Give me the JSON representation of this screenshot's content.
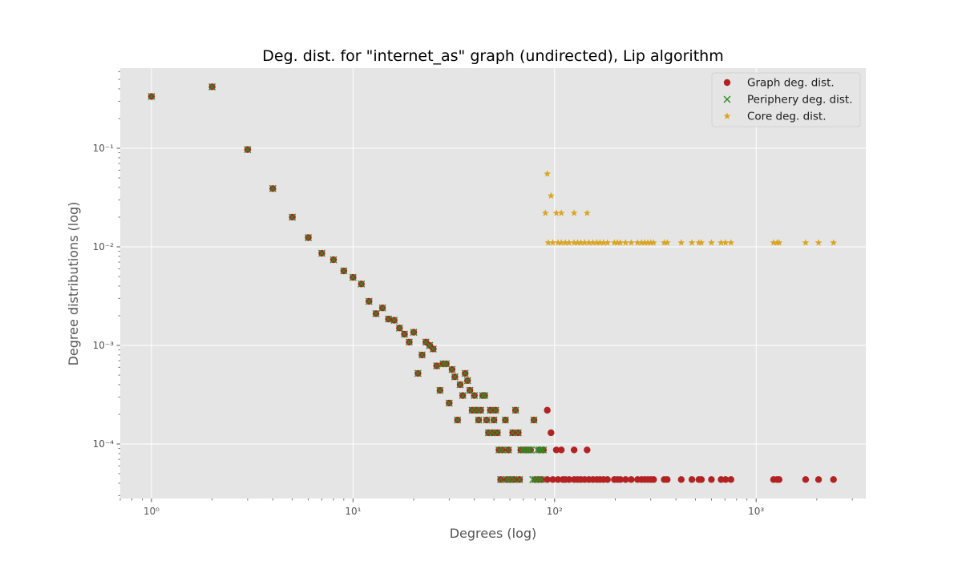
{
  "chart_data": {
    "type": "scatter",
    "title": "Deg. dist. for \"internet_as\" graph (undirected), Lip algorithm",
    "xlabel": "Degrees (log)",
    "ylabel": "Degree distributions (log)",
    "xscale": "log",
    "yscale": "log",
    "xlim": [
      0.7,
      3500
    ],
    "ylim": [
      2.8e-05,
      0.65
    ],
    "grid": true,
    "legend_position": "top-right",
    "x_ticks": [
      {
        "value": 1,
        "label": "10⁰"
      },
      {
        "value": 10,
        "label": "10¹"
      },
      {
        "value": 100,
        "label": "10²"
      },
      {
        "value": 1000,
        "label": "10³"
      }
    ],
    "y_ticks": [
      {
        "value": 0.0001,
        "label": "10⁻⁴"
      },
      {
        "value": 0.001,
        "label": "10⁻³"
      },
      {
        "value": 0.01,
        "label": "10⁻²"
      },
      {
        "value": 0.1,
        "label": "10⁻¹"
      }
    ],
    "series": [
      {
        "name": "Graph deg. dist.",
        "marker": "circle",
        "color": "#b22222",
        "points": [
          [
            1,
            0.335
          ],
          [
            2,
            0.42
          ],
          [
            3,
            0.097
          ],
          [
            4,
            0.039
          ],
          [
            5,
            0.02
          ],
          [
            6,
            0.0124
          ],
          [
            7,
            0.0086
          ],
          [
            8,
            0.0074
          ],
          [
            9,
            0.0057
          ],
          [
            10,
            0.0049
          ],
          [
            11,
            0.0042
          ],
          [
            12,
            0.0028
          ],
          [
            13,
            0.0021
          ],
          [
            14,
            0.0024
          ],
          [
            15,
            0.00185
          ],
          [
            16,
            0.0018
          ],
          [
            17,
            0.0015
          ],
          [
            18,
            0.0013
          ],
          [
            19,
            0.00108
          ],
          [
            20,
            0.00136
          ],
          [
            21,
            0.00052
          ],
          [
            22,
            0.0008
          ],
          [
            23,
            0.00108
          ],
          [
            24,
            0.001
          ],
          [
            25,
            0.00092
          ],
          [
            26,
            0.00062
          ],
          [
            27,
            0.00035
          ],
          [
            28,
            0.00065
          ],
          [
            29,
            0.00065
          ],
          [
            30,
            0.00026
          ],
          [
            31,
            0.00057
          ],
          [
            32,
            0.00048
          ],
          [
            33,
            0.000175
          ],
          [
            34,
            0.0004
          ],
          [
            35,
            0.00031
          ],
          [
            36,
            0.00052
          ],
          [
            37,
            0.00044
          ],
          [
            38,
            0.00035
          ],
          [
            39,
            0.00022
          ],
          [
            40,
            0.00031
          ],
          [
            41,
            0.00022
          ],
          [
            42,
            0.000175
          ],
          [
            43,
            0.00022
          ],
          [
            44,
            0.00031
          ],
          [
            45,
            0.00031
          ],
          [
            46,
            0.000175
          ],
          [
            47,
            0.00013
          ],
          [
            48,
            0.00022
          ],
          [
            49,
            0.00013
          ],
          [
            50,
            0.000175
          ],
          [
            51,
            0.00022
          ],
          [
            52,
            0.00013
          ],
          [
            53,
            8.7e-05
          ],
          [
            55,
            8.7e-05
          ],
          [
            57,
            0.000175
          ],
          [
            59,
            8.7e-05
          ],
          [
            62,
            0.00013
          ],
          [
            64,
            0.00022
          ],
          [
            66,
            0.00013
          ],
          [
            68,
            8.7e-05
          ],
          [
            72,
            8.7e-05
          ],
          [
            76,
            8.7e-05
          ],
          [
            79,
            0.000175
          ],
          [
            84,
            8.7e-05
          ],
          [
            88,
            8.7e-05
          ],
          [
            92,
            0.00022
          ],
          [
            96,
            0.00013
          ],
          [
            102,
            8.7e-05
          ],
          [
            108,
            8.7e-05
          ],
          [
            125,
            8.7e-05
          ],
          [
            145,
            8.7e-05
          ],
          [
            54,
            4.36e-05
          ],
          [
            58,
            4.36e-05
          ],
          [
            60,
            4.36e-05
          ],
          [
            63,
            4.36e-05
          ],
          [
            67,
            4.36e-05
          ],
          [
            80,
            4.36e-05
          ],
          [
            83,
            4.36e-05
          ],
          [
            86,
            4.36e-05
          ],
          [
            92,
            4.36e-05
          ],
          [
            98,
            4.36e-05
          ],
          [
            104,
            4.36e-05
          ],
          [
            110,
            4.36e-05
          ],
          [
            113,
            4.36e-05
          ],
          [
            118,
            4.36e-05
          ],
          [
            125,
            4.36e-05
          ],
          [
            130,
            4.36e-05
          ],
          [
            135,
            4.36e-05
          ],
          [
            141,
            4.36e-05
          ],
          [
            148,
            4.36e-05
          ],
          [
            155,
            4.36e-05
          ],
          [
            162,
            4.36e-05
          ],
          [
            168,
            4.36e-05
          ],
          [
            175,
            4.36e-05
          ],
          [
            183,
            4.36e-05
          ],
          [
            198,
            4.36e-05
          ],
          [
            205,
            4.36e-05
          ],
          [
            212,
            4.36e-05
          ],
          [
            225,
            4.36e-05
          ],
          [
            240,
            4.36e-05
          ],
          [
            258,
            4.36e-05
          ],
          [
            270,
            4.36e-05
          ],
          [
            280,
            4.36e-05
          ],
          [
            290,
            4.36e-05
          ],
          [
            300,
            4.36e-05
          ],
          [
            310,
            4.36e-05
          ],
          [
            350,
            4.36e-05
          ],
          [
            362,
            4.36e-05
          ],
          [
            425,
            4.36e-05
          ],
          [
            480,
            4.36e-05
          ],
          [
            520,
            4.36e-05
          ],
          [
            535,
            4.36e-05
          ],
          [
            600,
            4.36e-05
          ],
          [
            670,
            4.36e-05
          ],
          [
            705,
            4.36e-05
          ],
          [
            750,
            4.36e-05
          ],
          [
            1220,
            4.36e-05
          ],
          [
            1270,
            4.36e-05
          ],
          [
            1300,
            4.36e-05
          ],
          [
            1760,
            4.36e-05
          ],
          [
            2040,
            4.36e-05
          ],
          [
            2420,
            4.36e-05
          ]
        ]
      },
      {
        "name": "Periphery deg. dist.",
        "marker": "x",
        "color": "#2e8b22",
        "points": [
          [
            1,
            0.335
          ],
          [
            2,
            0.42
          ],
          [
            3,
            0.097
          ],
          [
            4,
            0.039
          ],
          [
            5,
            0.02
          ],
          [
            6,
            0.0124
          ],
          [
            7,
            0.0086
          ],
          [
            8,
            0.0074
          ],
          [
            9,
            0.0057
          ],
          [
            10,
            0.0049
          ],
          [
            11,
            0.0042
          ],
          [
            12,
            0.0028
          ],
          [
            13,
            0.0021
          ],
          [
            14,
            0.0024
          ],
          [
            15,
            0.00185
          ],
          [
            16,
            0.0018
          ],
          [
            17,
            0.0015
          ],
          [
            18,
            0.0013
          ],
          [
            19,
            0.00108
          ],
          [
            20,
            0.00136
          ],
          [
            21,
            0.00052
          ],
          [
            22,
            0.0008
          ],
          [
            23,
            0.00108
          ],
          [
            24,
            0.001
          ],
          [
            25,
            0.00092
          ],
          [
            26,
            0.00062
          ],
          [
            27,
            0.00035
          ],
          [
            28,
            0.00065
          ],
          [
            29,
            0.00065
          ],
          [
            30,
            0.00026
          ],
          [
            31,
            0.00057
          ],
          [
            32,
            0.00048
          ],
          [
            33,
            0.000175
          ],
          [
            34,
            0.0004
          ],
          [
            35,
            0.00031
          ],
          [
            36,
            0.00052
          ],
          [
            37,
            0.00044
          ],
          [
            38,
            0.00035
          ],
          [
            39,
            0.00022
          ],
          [
            40,
            0.00031
          ],
          [
            41,
            0.00022
          ],
          [
            42,
            0.000175
          ],
          [
            43,
            0.00022
          ],
          [
            44,
            0.00031
          ],
          [
            45,
            0.00031
          ],
          [
            46,
            0.000175
          ],
          [
            47,
            0.00013
          ],
          [
            48,
            0.00022
          ],
          [
            49,
            0.00013
          ],
          [
            50,
            0.000175
          ],
          [
            51,
            0.00022
          ],
          [
            52,
            0.00013
          ],
          [
            53,
            8.7e-05
          ],
          [
            55,
            8.7e-05
          ],
          [
            57,
            0.000175
          ],
          [
            59,
            8.7e-05
          ],
          [
            62,
            0.00013
          ],
          [
            64,
            0.00022
          ],
          [
            66,
            0.00013
          ],
          [
            68,
            8.7e-05
          ],
          [
            70,
            8.7e-05
          ],
          [
            72,
            8.7e-05
          ],
          [
            74,
            8.7e-05
          ],
          [
            76,
            8.7e-05
          ],
          [
            79,
            0.000175
          ],
          [
            82,
            8.7e-05
          ],
          [
            84,
            8.7e-05
          ],
          [
            86,
            8.7e-05
          ],
          [
            88,
            8.7e-05
          ],
          [
            54,
            4.36e-05
          ],
          [
            58,
            4.36e-05
          ],
          [
            60,
            4.36e-05
          ],
          [
            63,
            4.36e-05
          ],
          [
            67,
            4.36e-05
          ],
          [
            78,
            4.36e-05
          ],
          [
            80,
            4.36e-05
          ],
          [
            83,
            4.36e-05
          ],
          [
            86,
            4.36e-05
          ]
        ]
      },
      {
        "name": "Core deg. dist.",
        "marker": "star",
        "color": "#daa520",
        "points": [
          [
            92,
            0.055
          ],
          [
            96,
            0.033
          ],
          [
            90,
            0.022
          ],
          [
            102,
            0.022
          ],
          [
            108,
            0.022
          ],
          [
            125,
            0.022
          ],
          [
            145,
            0.022
          ],
          [
            93,
            0.011
          ],
          [
            98,
            0.011
          ],
          [
            104,
            0.011
          ],
          [
            108,
            0.011
          ],
          [
            113,
            0.011
          ],
          [
            118,
            0.011
          ],
          [
            125,
            0.011
          ],
          [
            130,
            0.011
          ],
          [
            135,
            0.011
          ],
          [
            141,
            0.011
          ],
          [
            148,
            0.011
          ],
          [
            155,
            0.011
          ],
          [
            162,
            0.011
          ],
          [
            168,
            0.011
          ],
          [
            175,
            0.011
          ],
          [
            183,
            0.011
          ],
          [
            198,
            0.011
          ],
          [
            205,
            0.011
          ],
          [
            212,
            0.011
          ],
          [
            225,
            0.011
          ],
          [
            240,
            0.011
          ],
          [
            258,
            0.011
          ],
          [
            270,
            0.011
          ],
          [
            280,
            0.011
          ],
          [
            290,
            0.011
          ],
          [
            300,
            0.011
          ],
          [
            310,
            0.011
          ],
          [
            350,
            0.011
          ],
          [
            362,
            0.011
          ],
          [
            425,
            0.011
          ],
          [
            480,
            0.011
          ],
          [
            520,
            0.011
          ],
          [
            535,
            0.011
          ],
          [
            600,
            0.011
          ],
          [
            670,
            0.011
          ],
          [
            705,
            0.011
          ],
          [
            750,
            0.011
          ],
          [
            1220,
            0.011
          ],
          [
            1270,
            0.011
          ],
          [
            1300,
            0.011
          ],
          [
            1760,
            0.011
          ],
          [
            2040,
            0.011
          ],
          [
            2420,
            0.011
          ]
        ]
      }
    ]
  }
}
